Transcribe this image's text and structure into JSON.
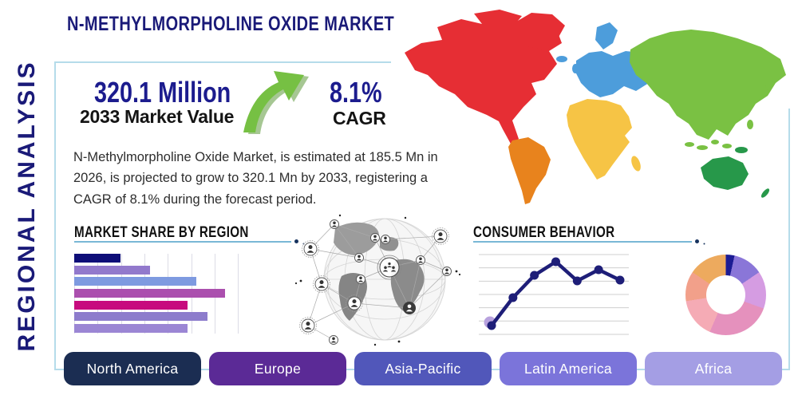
{
  "header": {
    "title": "N-METHYLMORPHOLINE OXIDE MARKET"
  },
  "sidebar": {
    "label": "REGIONAL ANALYSIS"
  },
  "stats": {
    "market_value": "320.1 Million",
    "market_value_caption": "2033 Market Value",
    "cagr_value": "8.1%",
    "cagr_caption": "CAGR",
    "growth_arrow_color": "#76c043",
    "growth_arrow_shadow_color": "#4e8f28"
  },
  "description": "N-Methylmorpholine Oxide Market, is estimated at 185.5 Mn in 2026, is projected to grow to 320.1 Mn by 2033, registering a CAGR of 8.1% during the forecast period.",
  "chart_data": [
    {
      "type": "bar",
      "title": "MARKET SHARE BY REGION",
      "orientation": "horizontal",
      "values": [
        21,
        34,
        55,
        68,
        51,
        60,
        51
      ],
      "values_unit": "percent_of_axis",
      "xlim": [
        0,
        100
      ],
      "grid": true,
      "colors": [
        "#0e0e78",
        "#9279cc",
        "#7e9ae0",
        "#ab4fae",
        "#c70b7e",
        "#8d7ccc",
        "#9b86d4"
      ]
    },
    {
      "type": "line",
      "title": "CONSUMER BEHAVIOR",
      "x": [
        1,
        2,
        3,
        4,
        5,
        6,
        7
      ],
      "values": [
        11,
        46,
        74,
        91,
        67,
        81,
        68
      ],
      "ylim": [
        0,
        100
      ],
      "grid": true,
      "gridline_count": 7,
      "line_color": "#1e1e78",
      "marker_color": "#1e1e78",
      "first_point_halo_color": "#b8a2de"
    },
    {
      "type": "pie",
      "style": "donut",
      "inner_radius_pct": 48,
      "segments": [
        {
          "value": 3.5,
          "color": "#1c1c94"
        },
        {
          "value": 12,
          "color": "#8a76d8"
        },
        {
          "value": 15,
          "color": "#d59ce2"
        },
        {
          "value": 26,
          "color": "#e591bd"
        },
        {
          "value": 16,
          "color": "#f5abb5"
        },
        {
          "value": 12,
          "color": "#f2a08a"
        },
        {
          "value": 15.5,
          "color": "#edaa5e"
        }
      ]
    }
  ],
  "map": {
    "regions": {
      "north_america": {
        "label": "North America",
        "color": "#e62e34"
      },
      "south_america": {
        "label": "South America",
        "color": "#e8831d"
      },
      "europe": {
        "label": "Europe",
        "color": "#4d9ddb"
      },
      "africa": {
        "label": "Africa",
        "color": "#f6c445"
      },
      "asia": {
        "label": "Asia",
        "color": "#7ac143"
      },
      "oceania": {
        "label": "Oceania",
        "color": "#27984a"
      }
    }
  },
  "region_buttons": [
    {
      "label": "North America",
      "color": "#1b2d52"
    },
    {
      "label": "Europe",
      "color": "#5b2a96"
    },
    {
      "label": "Asia-Pacific",
      "color": "#5157ba"
    },
    {
      "label": "Latin America",
      "color": "#7b74da"
    },
    {
      "label": "Africa",
      "color": "#a49ee4"
    }
  ],
  "colors": {
    "frame": "#b5dcea",
    "underline": "#79b8d6",
    "title_navy": "#1a1a78",
    "stat_navy": "#1c1c8e"
  }
}
